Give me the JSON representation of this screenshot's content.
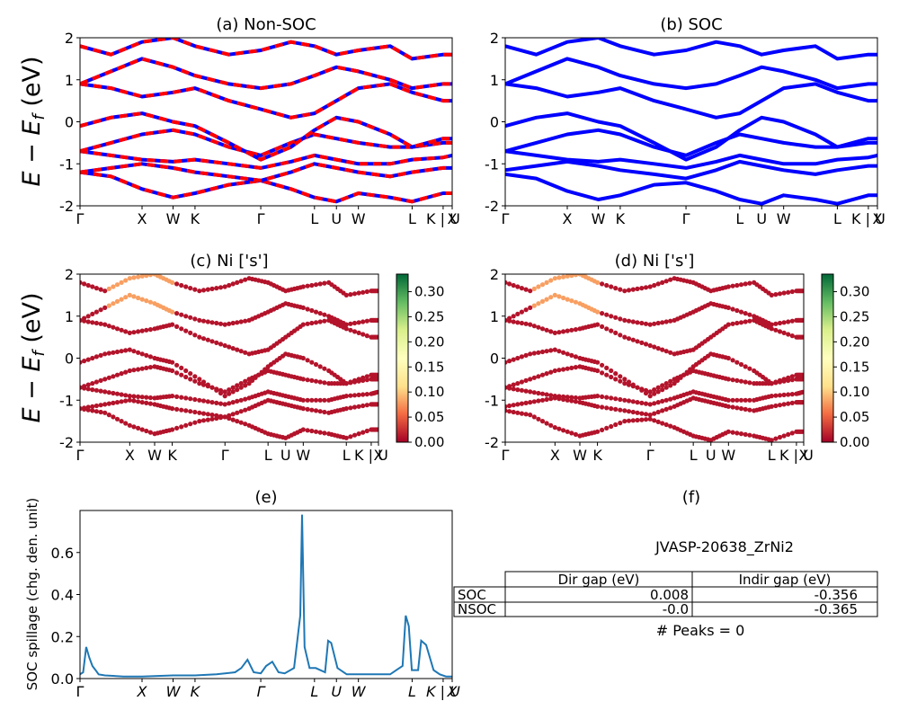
{
  "figure": {
    "ylabel_main": "E − E",
    "ylabel_sub": "f",
    "ylabel_unit": " (eV)"
  },
  "kpath": {
    "labels": [
      "Γ",
      "X",
      "W",
      "K",
      "Γ",
      "L",
      "U",
      "W",
      "L",
      "K | U",
      "X"
    ],
    "positions": [
      0.0,
      1.0,
      1.5,
      1.854,
      2.914,
      3.78,
      4.134,
      4.488,
      5.354,
      5.854,
      6.0
    ]
  },
  "panels": {
    "a": {
      "title": "(a) Non-SOC"
    },
    "b": {
      "title": "(b) SOC"
    },
    "c": {
      "title": "(c)  Ni ['s']"
    },
    "d": {
      "title": "(d) Ni ['s']"
    },
    "e": {
      "title": "(e)",
      "ylabel": "SOC spillage (chg. den. unit)"
    },
    "f": {
      "title": "(f)"
    }
  },
  "colorbar": {
    "ticks": [
      "0.00",
      "0.05",
      "0.10",
      "0.15",
      "0.20",
      "0.25",
      "0.30"
    ],
    "tick_values": [
      0,
      0.05,
      0.1,
      0.15,
      0.2,
      0.25,
      0.3
    ],
    "max": 0.335,
    "colors": [
      "#a50026",
      "#f46d43",
      "#fee08b",
      "#ffffbf",
      "#d9ef8b",
      "#66bd63",
      "#006837"
    ]
  },
  "colors": {
    "blue": "#0000ff",
    "red": "#ff0000",
    "spillage": "#1f77b4"
  },
  "chart_data": [
    {
      "type": "line",
      "title": "(a) Non-SOC",
      "ylabel": "E − E_f (eV)",
      "ylim": [
        -2,
        2
      ],
      "yticks": [
        -2,
        -1,
        0,
        1,
        2
      ],
      "series_style": "blue solid with red dashed overlay",
      "x": [
        0,
        0.5,
        1.0,
        1.5,
        1.854,
        2.4,
        2.914,
        3.4,
        3.78,
        4.134,
        4.488,
        5.0,
        5.354,
        5.854,
        6.0
      ],
      "series": [
        {
          "values": [
            -1.2,
            -1.3,
            -1.6,
            -1.8,
            -1.7,
            -1.5,
            -1.4,
            -1.6,
            -1.8,
            -1.9,
            -1.7,
            -1.8,
            -1.9,
            -1.7,
            -1.7
          ]
        },
        {
          "values": [
            -1.2,
            -1.1,
            -1.0,
            -1.1,
            -1.2,
            -1.3,
            -1.4,
            -1.2,
            -1.0,
            -1.1,
            -1.2,
            -1.3,
            -1.2,
            -1.1,
            -1.1
          ]
        },
        {
          "values": [
            -0.7,
            -0.8,
            -0.9,
            -0.95,
            -0.9,
            -1.0,
            -1.1,
            -0.95,
            -0.8,
            -0.9,
            -1.0,
            -1.0,
            -0.9,
            -0.85,
            -0.8
          ]
        },
        {
          "values": [
            -0.7,
            -0.5,
            -0.3,
            -0.2,
            -0.3,
            -0.6,
            -0.8,
            -0.5,
            -0.3,
            -0.4,
            -0.5,
            -0.6,
            -0.6,
            -0.5,
            -0.5
          ]
        },
        {
          "values": [
            -0.1,
            0.1,
            0.2,
            0.0,
            -0.1,
            -0.5,
            -0.9,
            -0.6,
            -0.2,
            0.1,
            0.0,
            -0.3,
            -0.6,
            -0.4,
            -0.4
          ]
        },
        {
          "values": [
            0.9,
            0.8,
            0.6,
            0.7,
            0.8,
            0.5,
            0.3,
            0.1,
            0.2,
            0.5,
            0.8,
            0.9,
            0.7,
            0.5,
            0.5
          ]
        },
        {
          "values": [
            0.9,
            1.2,
            1.5,
            1.3,
            1.1,
            0.9,
            0.8,
            0.9,
            1.1,
            1.3,
            1.2,
            1.0,
            0.8,
            0.9,
            0.9
          ]
        },
        {
          "values": [
            1.8,
            1.6,
            1.9,
            2.0,
            1.8,
            1.6,
            1.7,
            1.9,
            1.8,
            1.6,
            1.7,
            1.8,
            1.5,
            1.6,
            1.6
          ]
        }
      ]
    },
    {
      "type": "line",
      "title": "(b) SOC",
      "ylim": [
        -2,
        2
      ],
      "yticks": [
        -2,
        -1,
        0,
        1,
        2
      ],
      "x": [
        0,
        0.5,
        1.0,
        1.5,
        1.854,
        2.4,
        2.914,
        3.4,
        3.78,
        4.134,
        4.488,
        5.0,
        5.354,
        5.854,
        6.0
      ],
      "series": [
        {
          "values": [
            -1.25,
            -1.35,
            -1.65,
            -1.85,
            -1.75,
            -1.5,
            -1.45,
            -1.65,
            -1.85,
            -1.95,
            -1.75,
            -1.85,
            -1.95,
            -1.75,
            -1.75
          ]
        },
        {
          "values": [
            -1.15,
            -1.05,
            -0.95,
            -1.05,
            -1.15,
            -1.25,
            -1.35,
            -1.15,
            -0.95,
            -1.05,
            -1.15,
            -1.25,
            -1.15,
            -1.05,
            -1.05
          ]
        },
        {
          "values": [
            -0.7,
            -0.8,
            -0.9,
            -0.95,
            -0.9,
            -1.0,
            -1.1,
            -0.95,
            -0.8,
            -0.9,
            -1.0,
            -1.0,
            -0.9,
            -0.85,
            -0.8
          ]
        },
        {
          "values": [
            -0.7,
            -0.5,
            -0.3,
            -0.2,
            -0.3,
            -0.6,
            -0.8,
            -0.5,
            -0.3,
            -0.4,
            -0.5,
            -0.6,
            -0.6,
            -0.5,
            -0.5
          ]
        },
        {
          "values": [
            -0.1,
            0.1,
            0.2,
            0.0,
            -0.1,
            -0.5,
            -0.9,
            -0.6,
            -0.2,
            0.1,
            0.0,
            -0.3,
            -0.6,
            -0.4,
            -0.4
          ]
        },
        {
          "values": [
            0.9,
            0.8,
            0.6,
            0.7,
            0.8,
            0.5,
            0.3,
            0.1,
            0.2,
            0.5,
            0.8,
            0.9,
            0.7,
            0.5,
            0.5
          ]
        },
        {
          "values": [
            0.9,
            1.2,
            1.5,
            1.3,
            1.1,
            0.9,
            0.8,
            0.9,
            1.1,
            1.3,
            1.2,
            1.0,
            0.8,
            0.9,
            0.9
          ]
        },
        {
          "values": [
            1.8,
            1.6,
            1.9,
            2.0,
            1.8,
            1.6,
            1.7,
            1.9,
            1.8,
            1.6,
            1.7,
            1.8,
            1.5,
            1.6,
            1.6
          ]
        }
      ]
    },
    {
      "type": "scatter",
      "title": "(c)  Ni ['s']",
      "ylim": [
        -2,
        2
      ],
      "yticks": [
        -2,
        -1,
        0,
        1,
        2
      ],
      "colorbar_range": [
        0,
        0.335
      ],
      "note": "band points colored by Ni s-orbital weight; mostly ~0.0-0.05, up to ~0.1 near X around 1.5 eV"
    },
    {
      "type": "scatter",
      "title": "(d) Ni ['s']",
      "ylim": [
        -2,
        2
      ],
      "yticks": [
        -2,
        -1,
        0,
        1,
        2
      ],
      "colorbar_range": [
        0,
        0.335
      ]
    },
    {
      "type": "line",
      "title": "(e)",
      "ylabel": "SOC spillage (chg. den. unit)",
      "ylim": [
        0,
        0.8
      ],
      "yticks": [
        0.0,
        0.2,
        0.4,
        0.6
      ],
      "x": [
        0,
        0.05,
        0.1,
        0.15,
        0.2,
        0.25,
        0.3,
        0.4,
        0.7,
        1.0,
        1.5,
        1.854,
        2.2,
        2.5,
        2.6,
        2.7,
        2.8,
        2.914,
        3.0,
        3.1,
        3.2,
        3.3,
        3.45,
        3.55,
        3.58,
        3.62,
        3.7,
        3.8,
        3.95,
        4.0,
        4.05,
        4.15,
        4.3,
        4.6,
        5.0,
        5.1,
        5.2,
        5.25,
        5.3,
        5.35,
        5.45,
        5.5,
        5.58,
        5.7,
        5.8,
        5.9,
        6.0
      ],
      "values": [
        0.02,
        0.03,
        0.15,
        0.1,
        0.06,
        0.04,
        0.02,
        0.015,
        0.01,
        0.01,
        0.015,
        0.015,
        0.02,
        0.03,
        0.05,
        0.09,
        0.03,
        0.025,
        0.06,
        0.08,
        0.03,
        0.025,
        0.05,
        0.3,
        0.78,
        0.15,
        0.05,
        0.05,
        0.03,
        0.18,
        0.17,
        0.05,
        0.02,
        0.02,
        0.02,
        0.04,
        0.06,
        0.3,
        0.25,
        0.04,
        0.04,
        0.18,
        0.16,
        0.04,
        0.02,
        0.01,
        0.01
      ]
    },
    {
      "type": "table",
      "title": "(f)",
      "caption": "JVASP-20638_ZrNi2",
      "columns": [
        "",
        "Dir gap (eV)",
        "Indir gap (eV)"
      ],
      "rows": [
        [
          "SOC",
          "0.008",
          "-0.356"
        ],
        [
          "NSOC",
          "-0.0",
          "-0.365"
        ]
      ],
      "footer": "# Peaks = 0"
    }
  ]
}
